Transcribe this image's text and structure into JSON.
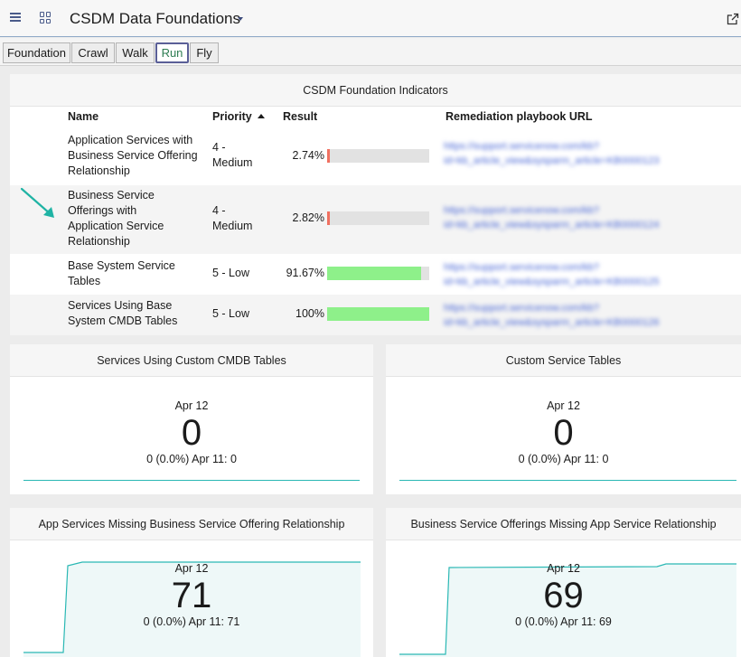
{
  "header": {
    "title": "CSDM Data Foundations",
    "menu_icon": "hamburger-menu-icon",
    "apps_icon": "grid-apps-icon",
    "share_icon": "share-icon"
  },
  "tabs": [
    {
      "label": "Foundation",
      "active": false
    },
    {
      "label": "Crawl",
      "active": false
    },
    {
      "label": "Walk",
      "active": false
    },
    {
      "label": "Run",
      "active": true
    },
    {
      "label": "Fly",
      "active": false
    }
  ],
  "indicators": {
    "title": "CSDM Foundation Indicators",
    "columns": {
      "name": "Name",
      "priority": "Priority",
      "result": "Result",
      "url": "Remediation playbook URL"
    },
    "rows": [
      {
        "name": "Application Services with Business Service Offering Relationship",
        "priority": "4 - Medium",
        "result": "2.74%",
        "result_value": 2.74,
        "url_line1": "https://support.servicenow.com/kb?",
        "url_line2": "id=kb_article_view&sysparm_article=KB0000123"
      },
      {
        "name": "Business Service Offerings with Application Service Relationship",
        "priority": "4 - Medium",
        "result": "2.82%",
        "result_value": 2.82,
        "url_line1": "https://support.servicenow.com/kb?",
        "url_line2": "id=kb_article_view&sysparm_article=KB0000124"
      },
      {
        "name": "Base System Service Tables",
        "priority": "5 - Low",
        "result": "91.67%",
        "result_value": 91.67,
        "url_line1": "https://support.servicenow.com/kb?",
        "url_line2": "id=kb_article_view&sysparm_article=KB0000125"
      },
      {
        "name": "Services Using Base System CMDB Tables",
        "priority": "5 - Low",
        "result": "100%",
        "result_value": 100,
        "url_line1": "https://support.servicenow.com/kb?",
        "url_line2": "id=kb_article_view&sysparm_article=KB0000126"
      }
    ]
  },
  "widgets": [
    {
      "title": "Services Using Custom CMDB Tables",
      "date": "Apr 12",
      "value": "0",
      "delta": "0 (0.0%)  Apr 11: 0"
    },
    {
      "title": "Custom Service Tables",
      "date": "Apr 12",
      "value": "0",
      "delta": "0 (0.0%)  Apr 11: 0"
    },
    {
      "title": "App Services Missing Business Service Offering Relationship",
      "date": "Apr 12",
      "value": "71",
      "delta": "0 (0.0%)  Apr 11: 71"
    },
    {
      "title": "Business Service Offerings Missing App Service Relationship",
      "date": "Apr 12",
      "value": "69",
      "delta": "0 (0.0%)  Apr 11: 69"
    }
  ],
  "colors": {
    "bar_low": "#f07060",
    "bar_high": "#8ef08a",
    "trend": "#2ab8b4",
    "accent_tab_text": "#2e7d52",
    "annotation_arrow": "#1fb3a4"
  }
}
